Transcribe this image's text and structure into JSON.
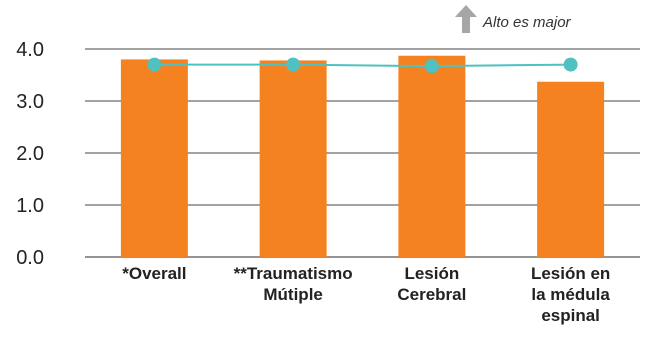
{
  "chart_data": {
    "type": "bar",
    "categories": [
      [
        "*Overall"
      ],
      [
        "**Traumatismo",
        "Mútiple"
      ],
      [
        "Lesión",
        "Cerebral"
      ],
      [
        "Lesión en",
        "la médula",
        "espinal"
      ]
    ],
    "series": [
      {
        "type": "bar",
        "color": "#F58220",
        "values": [
          3.8,
          3.78,
          3.87,
          3.37
        ]
      },
      {
        "type": "line",
        "color": "#4FC1C0",
        "values": [
          3.7,
          3.7,
          3.67,
          3.7
        ]
      }
    ],
    "yticks": [
      "0.0",
      "1.0",
      "2.0",
      "3.0",
      "4.0"
    ],
    "ylim": [
      0,
      4
    ],
    "grid": true,
    "annotation": {
      "text": "Alto es major",
      "icon": "up-arrow-icon",
      "arrow_color": "#A6A6A6"
    }
  }
}
